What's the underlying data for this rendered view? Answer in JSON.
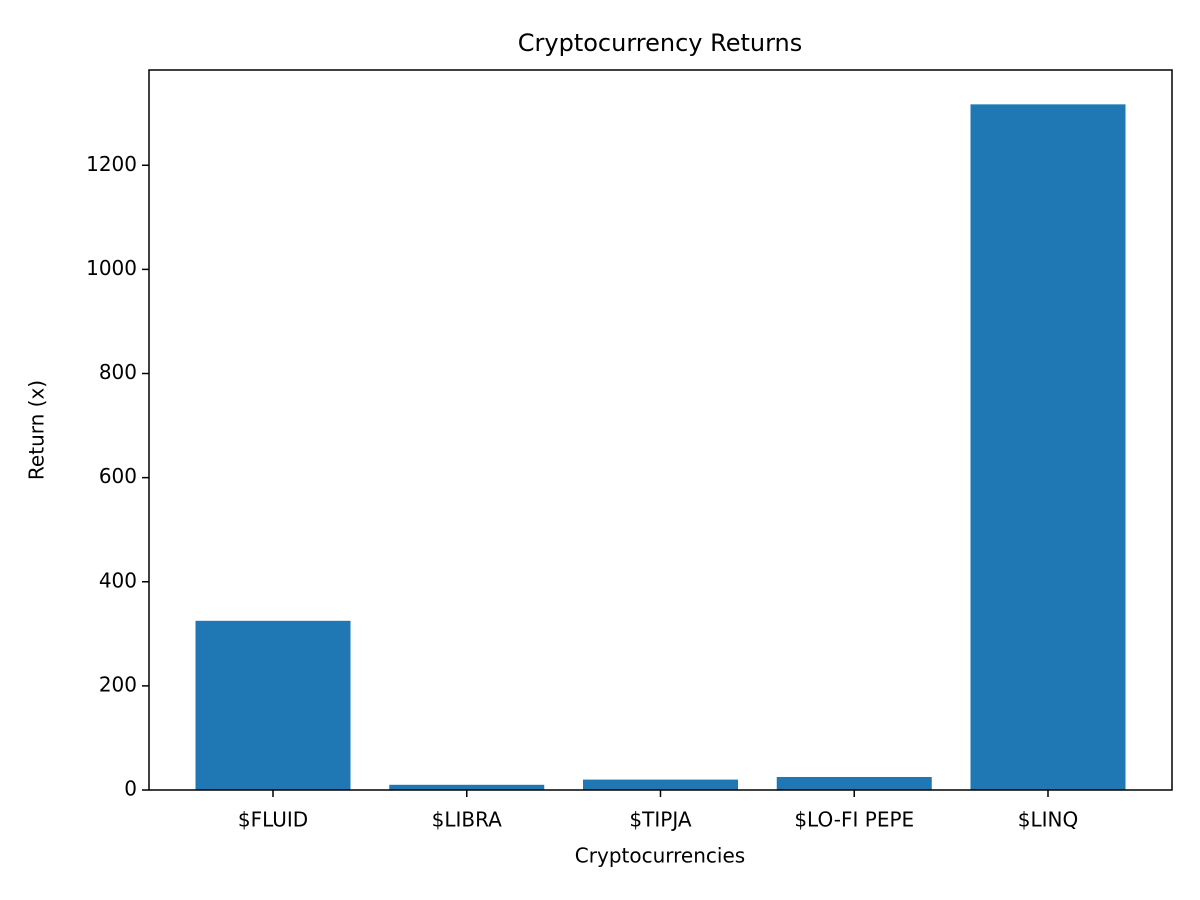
{
  "chart_data": {
    "type": "bar",
    "title": "Cryptocurrency Returns",
    "x_label": "Cryptocurrencies",
    "y_label": "Return (x)",
    "categories": [
      "$FLUID",
      "$LIBRA",
      "$TIPJA",
      "$LO-FI PEPE",
      "$LINQ"
    ],
    "values": [
      325,
      10,
      20,
      25,
      1317
    ],
    "color": "#1f77b4",
    "ylim": [
      0,
      1383
    ],
    "yticks": [
      0,
      200,
      400,
      600,
      800,
      1000,
      1200
    ],
    "grid": false
  }
}
